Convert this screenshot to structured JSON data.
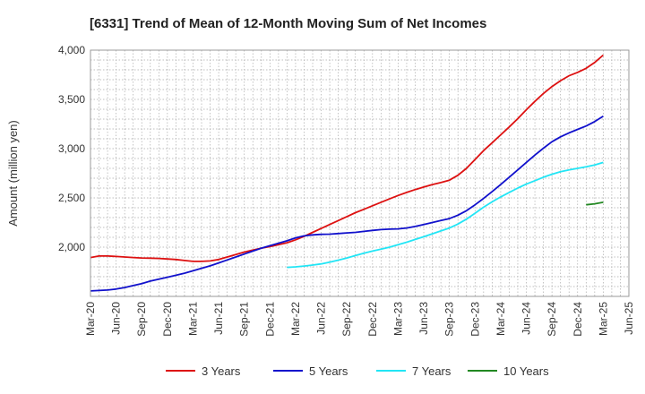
{
  "chart_data": {
    "type": "line",
    "title": "[6331]  Trend of Mean of 12-Month Moving Sum of Net Incomes",
    "ylabel": "Amount (million yen)",
    "xlabel": "",
    "ylim": [
      1500,
      4000
    ],
    "yticks": [
      2000,
      2500,
      3000,
      3500,
      4000
    ],
    "ytick_labels": [
      "2,000",
      "2,500",
      "3,000",
      "3,500",
      "4,000"
    ],
    "xlim": [
      "2020-03",
      "2025-06"
    ],
    "xtick_labels": [
      "Mar-20",
      "Jun-20",
      "Sep-20",
      "Dec-20",
      "Mar-21",
      "Jun-21",
      "Sep-21",
      "Dec-21",
      "Mar-22",
      "Jun-22",
      "Sep-22",
      "Dec-22",
      "Mar-23",
      "Jun-23",
      "Sep-23",
      "Dec-23",
      "Mar-24",
      "Jun-24",
      "Sep-24",
      "Dec-24",
      "Mar-25",
      "Jun-25"
    ],
    "grid": true,
    "legend_position": "bottom",
    "series": [
      {
        "name": "3 Years",
        "color": "#dd1111",
        "points": [
          [
            "2020-03",
            1895
          ],
          [
            "2020-04",
            1910
          ],
          [
            "2020-05",
            1910
          ],
          [
            "2020-06",
            1905
          ],
          [
            "2020-07",
            1900
          ],
          [
            "2020-08",
            1895
          ],
          [
            "2020-09",
            1890
          ],
          [
            "2020-10",
            1888
          ],
          [
            "2020-11",
            1885
          ],
          [
            "2020-12",
            1880
          ],
          [
            "2021-01",
            1875
          ],
          [
            "2021-02",
            1865
          ],
          [
            "2021-03",
            1855
          ],
          [
            "2021-04",
            1855
          ],
          [
            "2021-05",
            1860
          ],
          [
            "2021-06",
            1875
          ],
          [
            "2021-07",
            1900
          ],
          [
            "2021-08",
            1925
          ],
          [
            "2021-09",
            1950
          ],
          [
            "2021-10",
            1970
          ],
          [
            "2021-11",
            1990
          ],
          [
            "2021-12",
            2005
          ],
          [
            "2022-01",
            2025
          ],
          [
            "2022-02",
            2045
          ],
          [
            "2022-03",
            2075
          ],
          [
            "2022-04",
            2110
          ],
          [
            "2022-05",
            2150
          ],
          [
            "2022-06",
            2190
          ],
          [
            "2022-07",
            2230
          ],
          [
            "2022-08",
            2270
          ],
          [
            "2022-09",
            2310
          ],
          [
            "2022-10",
            2350
          ],
          [
            "2022-11",
            2385
          ],
          [
            "2022-12",
            2420
          ],
          [
            "2023-01",
            2455
          ],
          [
            "2023-02",
            2490
          ],
          [
            "2023-03",
            2525
          ],
          [
            "2023-04",
            2555
          ],
          [
            "2023-05",
            2585
          ],
          [
            "2023-06",
            2610
          ],
          [
            "2023-07",
            2635
          ],
          [
            "2023-08",
            2655
          ],
          [
            "2023-09",
            2680
          ],
          [
            "2023-10",
            2730
          ],
          [
            "2023-11",
            2800
          ],
          [
            "2023-12",
            2890
          ],
          [
            "2024-01",
            2980
          ],
          [
            "2024-02",
            3060
          ],
          [
            "2024-03",
            3140
          ],
          [
            "2024-04",
            3220
          ],
          [
            "2024-05",
            3305
          ],
          [
            "2024-06",
            3395
          ],
          [
            "2024-07",
            3480
          ],
          [
            "2024-08",
            3560
          ],
          [
            "2024-09",
            3630
          ],
          [
            "2024-10",
            3690
          ],
          [
            "2024-11",
            3740
          ],
          [
            "2024-12",
            3775
          ],
          [
            "2025-01",
            3815
          ],
          [
            "2025-02",
            3875
          ],
          [
            "2025-03",
            3950
          ]
        ]
      },
      {
        "name": "5 Years",
        "color": "#1111cc",
        "points": [
          [
            "2020-03",
            1555
          ],
          [
            "2020-04",
            1560
          ],
          [
            "2020-05",
            1565
          ],
          [
            "2020-06",
            1575
          ],
          [
            "2020-07",
            1590
          ],
          [
            "2020-08",
            1610
          ],
          [
            "2020-09",
            1630
          ],
          [
            "2020-10",
            1655
          ],
          [
            "2020-11",
            1675
          ],
          [
            "2020-12",
            1695
          ],
          [
            "2021-01",
            1715
          ],
          [
            "2021-02",
            1735
          ],
          [
            "2021-03",
            1760
          ],
          [
            "2021-04",
            1785
          ],
          [
            "2021-05",
            1810
          ],
          [
            "2021-06",
            1840
          ],
          [
            "2021-07",
            1870
          ],
          [
            "2021-08",
            1900
          ],
          [
            "2021-09",
            1930
          ],
          [
            "2021-10",
            1960
          ],
          [
            "2021-11",
            1990
          ],
          [
            "2021-12",
            2015
          ],
          [
            "2022-01",
            2040
          ],
          [
            "2022-02",
            2065
          ],
          [
            "2022-03",
            2095
          ],
          [
            "2022-04",
            2115
          ],
          [
            "2022-05",
            2125
          ],
          [
            "2022-06",
            2130
          ],
          [
            "2022-07",
            2132
          ],
          [
            "2022-08",
            2138
          ],
          [
            "2022-09",
            2145
          ],
          [
            "2022-10",
            2150
          ],
          [
            "2022-11",
            2160
          ],
          [
            "2022-12",
            2170
          ],
          [
            "2023-01",
            2178
          ],
          [
            "2023-02",
            2183
          ],
          [
            "2023-03",
            2185
          ],
          [
            "2023-04",
            2195
          ],
          [
            "2023-05",
            2210
          ],
          [
            "2023-06",
            2230
          ],
          [
            "2023-07",
            2250
          ],
          [
            "2023-08",
            2270
          ],
          [
            "2023-09",
            2290
          ],
          [
            "2023-10",
            2325
          ],
          [
            "2023-11",
            2370
          ],
          [
            "2023-12",
            2430
          ],
          [
            "2024-01",
            2495
          ],
          [
            "2024-02",
            2565
          ],
          [
            "2024-03",
            2635
          ],
          [
            "2024-04",
            2710
          ],
          [
            "2024-05",
            2785
          ],
          [
            "2024-06",
            2860
          ],
          [
            "2024-07",
            2935
          ],
          [
            "2024-08",
            3005
          ],
          [
            "2024-09",
            3070
          ],
          [
            "2024-10",
            3120
          ],
          [
            "2024-11",
            3160
          ],
          [
            "2024-12",
            3195
          ],
          [
            "2025-01",
            3230
          ],
          [
            "2025-02",
            3275
          ],
          [
            "2025-03",
            3330
          ]
        ]
      },
      {
        "name": "7 Years",
        "color": "#22e5f5",
        "points": [
          [
            "2022-02",
            1795
          ],
          [
            "2022-03",
            1800
          ],
          [
            "2022-04",
            1808
          ],
          [
            "2022-05",
            1818
          ],
          [
            "2022-06",
            1830
          ],
          [
            "2022-07",
            1848
          ],
          [
            "2022-08",
            1868
          ],
          [
            "2022-09",
            1890
          ],
          [
            "2022-10",
            1915
          ],
          [
            "2022-11",
            1938
          ],
          [
            "2022-12",
            1960
          ],
          [
            "2023-01",
            1980
          ],
          [
            "2023-02",
            2000
          ],
          [
            "2023-03",
            2025
          ],
          [
            "2023-04",
            2050
          ],
          [
            "2023-05",
            2078
          ],
          [
            "2023-06",
            2105
          ],
          [
            "2023-07",
            2135
          ],
          [
            "2023-08",
            2165
          ],
          [
            "2023-09",
            2195
          ],
          [
            "2023-10",
            2235
          ],
          [
            "2023-11",
            2285
          ],
          [
            "2023-12",
            2345
          ],
          [
            "2024-01",
            2405
          ],
          [
            "2024-02",
            2460
          ],
          [
            "2024-03",
            2510
          ],
          [
            "2024-04",
            2555
          ],
          [
            "2024-05",
            2600
          ],
          [
            "2024-06",
            2640
          ],
          [
            "2024-07",
            2675
          ],
          [
            "2024-08",
            2710
          ],
          [
            "2024-09",
            2740
          ],
          [
            "2024-10",
            2765
          ],
          [
            "2024-11",
            2785
          ],
          [
            "2024-12",
            2800
          ],
          [
            "2025-01",
            2815
          ],
          [
            "2025-02",
            2835
          ],
          [
            "2025-03",
            2860
          ]
        ]
      },
      {
        "name": "10 Years",
        "color": "#228822",
        "points": [
          [
            "2025-01",
            2430
          ],
          [
            "2025-02",
            2440
          ],
          [
            "2025-03",
            2455
          ]
        ]
      }
    ]
  }
}
